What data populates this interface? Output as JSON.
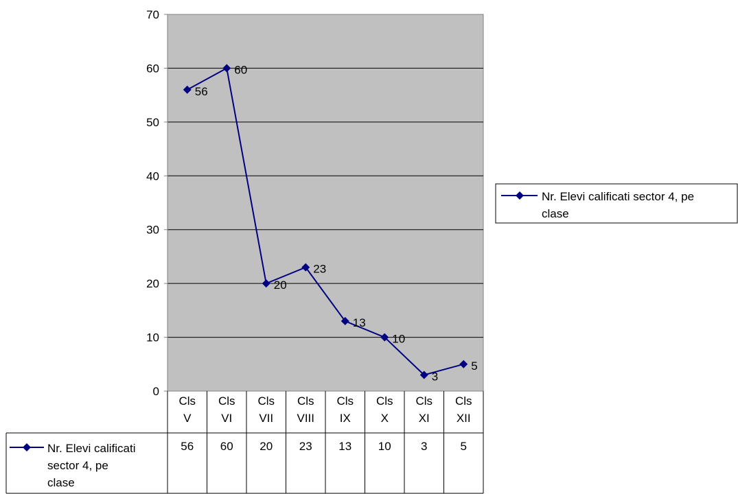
{
  "chart_data": {
    "type": "line",
    "categories": [
      "Cls V",
      "Cls VI",
      "Cls VII",
      "Cls VIII",
      "Cls IX",
      "Cls X",
      "Cls XI",
      "Cls XII"
    ],
    "category_lines": [
      [
        "Cls",
        "V"
      ],
      [
        "Cls",
        "VI"
      ],
      [
        "Cls",
        "VII"
      ],
      [
        "Cls",
        "VIII"
      ],
      [
        "Cls",
        "IX"
      ],
      [
        "Cls",
        "X"
      ],
      [
        "Cls",
        "XI"
      ],
      [
        "Cls",
        "XII"
      ]
    ],
    "series": [
      {
        "name": "Nr. Elevi calificati sector 4, pe clase",
        "values": [
          56,
          60,
          20,
          23,
          13,
          10,
          3,
          5
        ],
        "color": "#000080",
        "marker": "diamond"
      }
    ],
    "ylim": [
      0,
      70
    ],
    "yticks": [
      0,
      10,
      20,
      30,
      40,
      50,
      60,
      70
    ],
    "grid": true,
    "plot_background": "#c0c0c0",
    "legend": {
      "position": "right",
      "lines": [
        "Nr. Elevi calificati sector 4, pe",
        "clase"
      ]
    },
    "data_table": {
      "shown": true,
      "row_label_lines": [
        "Nr. Elevi calificati",
        "sector 4, pe",
        "clase"
      ]
    },
    "data_labels": true
  }
}
